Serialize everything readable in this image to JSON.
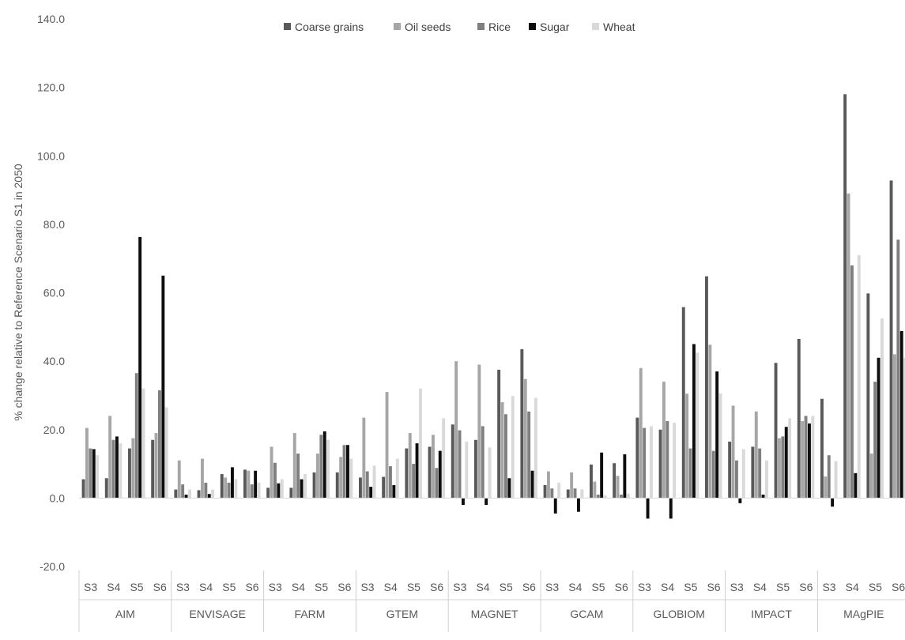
{
  "chart_data": {
    "type": "bar",
    "title": "",
    "ylabel": "% change relative to Reference Scenario S1 in 2050",
    "xlabel": "",
    "ylim": [
      -20,
      140
    ],
    "yticks": [
      "140.0",
      "120.0",
      "100.0",
      "80.0",
      "60.0",
      "40.0",
      "20.0",
      "0.0",
      "-20.0"
    ],
    "grid": false,
    "legend_position": "top",
    "groups": [
      "AIM",
      "ENVISAGE",
      "FARM",
      "GTEM",
      "MAGNET",
      "GCAM",
      "GLOBIOM",
      "IMPACT",
      "MAgPIE"
    ],
    "scenarios": [
      "S3",
      "S4",
      "S5",
      "S6"
    ],
    "category_labels": [
      "S3",
      "S4",
      "S5",
      "S6",
      "S3",
      "S4",
      "S5",
      "S6",
      "S3",
      "S4",
      "S5",
      "S6",
      "S3",
      "S4",
      "S5",
      "S6",
      "S3",
      "S4",
      "S5",
      "S6",
      "S3",
      "S4",
      "S5",
      "S6",
      "S3",
      "S4",
      "S5",
      "S6",
      "S3",
      "S4",
      "S5",
      "S6",
      "S3",
      "S4",
      "S5",
      "S6"
    ],
    "series": [
      {
        "name": "Coarse grains",
        "color": "#595959",
        "values": [
          5.5,
          5.8,
          14.5,
          17.0,
          2.5,
          2.3,
          7.0,
          8.3,
          3.0,
          3.0,
          7.5,
          7.5,
          6.0,
          6.2,
          14.5,
          15.0,
          21.5,
          17.0,
          37.5,
          43.5,
          3.8,
          2.5,
          9.8,
          10.2,
          23.5,
          20.0,
          55.8,
          64.8,
          16.5,
          15.0,
          39.5,
          46.5,
          29.0,
          118.0,
          59.8,
          92.8
        ]
      },
      {
        "name": "Oil seeds",
        "color": "#a6a6a6",
        "values": [
          20.5,
          24.0,
          17.5,
          19.0,
          11.0,
          11.5,
          6.0,
          8.0,
          15.0,
          19.0,
          13.0,
          12.0,
          23.5,
          31.0,
          19.0,
          18.5,
          40.0,
          39.0,
          28.0,
          34.8,
          7.8,
          7.5,
          4.8,
          6.5,
          38.0,
          34.0,
          30.5,
          44.8,
          27.0,
          25.3,
          17.5,
          22.5,
          6.3,
          89.0,
          13.0,
          42.0
        ]
      },
      {
        "name": "Rice",
        "color": "#7f7f7f",
        "values": [
          14.5,
          17.0,
          36.5,
          31.5,
          4.0,
          4.5,
          4.5,
          4.0,
          10.3,
          13.0,
          18.5,
          15.5,
          7.8,
          9.3,
          10.0,
          8.8,
          19.8,
          21.0,
          24.5,
          25.3,
          2.8,
          2.8,
          1.0,
          1.0,
          20.5,
          22.5,
          14.5,
          13.8,
          11.0,
          14.5,
          18.0,
          24.0,
          12.5,
          68.0,
          34.0,
          75.5
        ]
      },
      {
        "name": "Sugar",
        "color": "#0d0d0d",
        "values": [
          14.3,
          18.0,
          76.3,
          65.0,
          1.0,
          1.2,
          9.0,
          8.0,
          4.3,
          5.5,
          19.5,
          15.5,
          3.3,
          3.8,
          16.0,
          13.8,
          -2.0,
          -2.0,
          5.8,
          8.0,
          -4.5,
          -4.0,
          13.3,
          12.8,
          -6.0,
          -6.0,
          45.0,
          37.0,
          -1.5,
          1.0,
          20.8,
          21.8,
          -2.5,
          7.3,
          41.0,
          48.8
        ]
      },
      {
        "name": "Wheat",
        "color": "#d9d9d9",
        "values": [
          12.5,
          16.0,
          32.0,
          26.5,
          2.5,
          2.5,
          5.5,
          4.5,
          5.5,
          7.0,
          17.0,
          11.5,
          9.5,
          11.5,
          32.0,
          23.3,
          16.5,
          14.8,
          29.8,
          29.3,
          4.5,
          2.5,
          0.8,
          1.3,
          21.0,
          22.0,
          42.5,
          30.5,
          14.3,
          11.0,
          23.3,
          24.0,
          10.8,
          71.0,
          52.5,
          41.0
        ]
      }
    ]
  }
}
